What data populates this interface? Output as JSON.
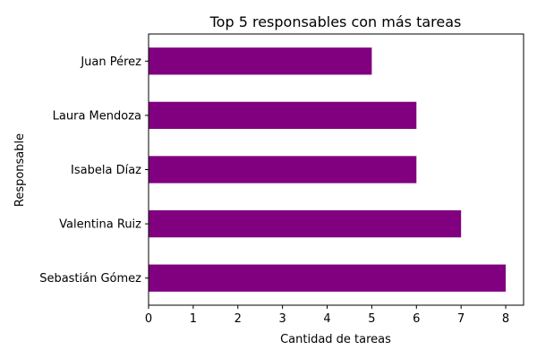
{
  "chart_data": {
    "type": "bar",
    "orientation": "horizontal",
    "title": "Top 5 responsables con más tareas",
    "xlabel": "Cantidad de tareas",
    "ylabel": "Responsable",
    "categories": [
      "Sebastián Gómez",
      "Valentina Ruiz",
      "Isabela Díaz",
      "Laura Mendoza",
      "Juan Pérez"
    ],
    "values": [
      8,
      7,
      6,
      6,
      5
    ],
    "xlim": [
      0,
      8.4
    ],
    "xticks": [
      "0",
      "1",
      "2",
      "3",
      "4",
      "5",
      "6",
      "7",
      "8"
    ],
    "grid": false,
    "legend": "none",
    "bar_color": "#800080"
  }
}
